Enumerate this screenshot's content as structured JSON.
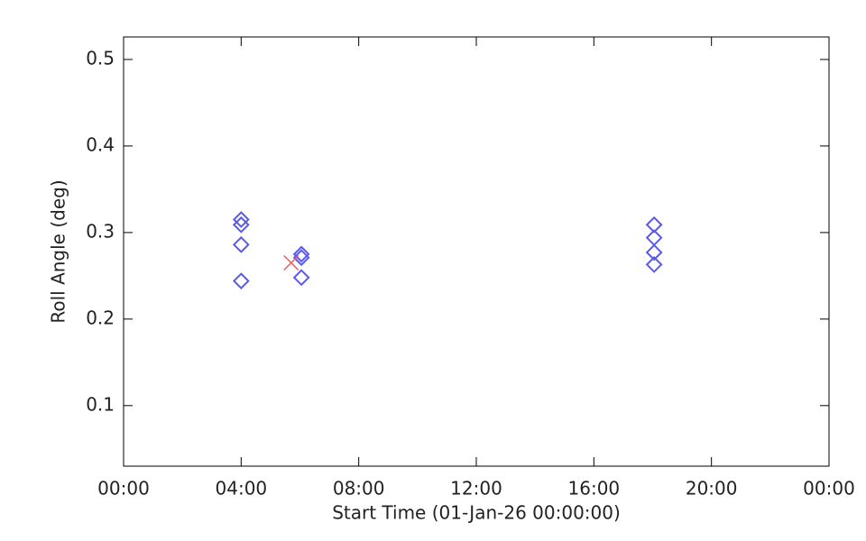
{
  "chart_data": {
    "type": "scatter",
    "xlabel": "Start Time (01-Jan-26 00:00:00)",
    "ylabel": "Roll Angle (deg)",
    "xlim": [
      0,
      24
    ],
    "ylim": [
      0.03,
      0.526
    ],
    "xticks": [
      {
        "value": 0,
        "label": "00:00"
      },
      {
        "value": 4,
        "label": "04:00"
      },
      {
        "value": 8,
        "label": "08:00"
      },
      {
        "value": 12,
        "label": "12:00"
      },
      {
        "value": 16,
        "label": "16:00"
      },
      {
        "value": 20,
        "label": "20:00"
      },
      {
        "value": 24,
        "label": "00:00"
      }
    ],
    "yticks": [
      0.1,
      0.2,
      0.3,
      0.4,
      0.5
    ],
    "series": [
      {
        "color": "#5a5aee",
        "marker": "diamond",
        "x": [
          4.0,
          4.0,
          4.0,
          4.0,
          6.05,
          6.05,
          6.05,
          18.05,
          18.05,
          18.05,
          18.05
        ],
        "values": [
          0.315,
          0.309,
          0.286,
          0.244,
          0.275,
          0.271,
          0.248,
          0.309,
          0.294,
          0.277,
          0.263
        ]
      },
      {
        "color": "#ee5a5a",
        "marker": "x",
        "x": [
          5.7
        ],
        "values": [
          0.265
        ]
      }
    ]
  }
}
